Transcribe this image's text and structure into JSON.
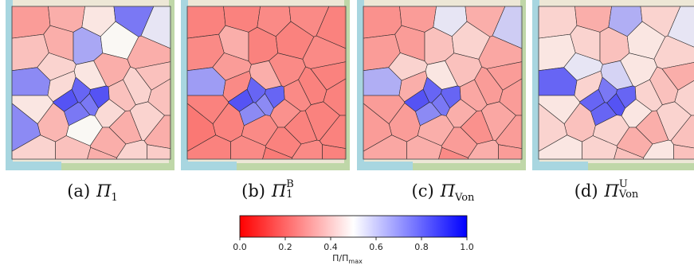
{
  "panels": [
    {
      "label": "(a)",
      "symbol": "Π",
      "sub": "1",
      "sup": "",
      "values": [
        0.25,
        0.3,
        0.45,
        0.85,
        0.55,
        0.35,
        0.3,
        0.72,
        0.5,
        0.3,
        0.8,
        0.95,
        0.9,
        0.85,
        0.95,
        0.85,
        0.4,
        0.45,
        0.3,
        0.4,
        0.35,
        0.42,
        0.4,
        0.3,
        0.5,
        0.32,
        0.8,
        0.4,
        0.35,
        0.3,
        0.4,
        0.38,
        0.42,
        0.3,
        0.3,
        0.45,
        0.35,
        0.35
      ]
    },
    {
      "label": "(b)",
      "symbol": "Π",
      "sub": "1",
      "sup": "B",
      "values": [
        0.18,
        0.18,
        0.2,
        0.2,
        0.18,
        0.2,
        0.3,
        0.18,
        0.18,
        0.2,
        0.75,
        0.95,
        0.9,
        0.8,
        0.9,
        0.8,
        0.25,
        0.3,
        0.2,
        0.18,
        0.18,
        0.22,
        0.18,
        0.18,
        0.2,
        0.18,
        0.15,
        0.18,
        0.2,
        0.18,
        0.2,
        0.18,
        0.2,
        0.18,
        0.16,
        0.18,
        0.2,
        0.18
      ]
    },
    {
      "label": "(c)",
      "symbol": "Π",
      "sub": "Von",
      "sup": "",
      "values": [
        0.22,
        0.25,
        0.55,
        0.3,
        0.62,
        0.25,
        0.25,
        0.35,
        0.4,
        0.28,
        0.7,
        0.95,
        0.9,
        0.85,
        0.9,
        0.8,
        0.4,
        0.45,
        0.35,
        0.25,
        0.25,
        0.3,
        0.28,
        0.25,
        0.3,
        0.25,
        0.25,
        0.28,
        0.3,
        0.25,
        0.3,
        0.25,
        0.3,
        0.22,
        0.2,
        0.25,
        0.28,
        0.25
      ]
    },
    {
      "label": "(d)",
      "symbol": "Π",
      "sub": "Von",
      "sup": "U",
      "values": [
        0.4,
        0.3,
        0.7,
        0.4,
        0.55,
        0.45,
        0.4,
        0.35,
        0.45,
        0.4,
        0.9,
        0.9,
        0.85,
        0.95,
        0.9,
        0.9,
        0.55,
        0.6,
        0.45,
        0.35,
        0.4,
        0.45,
        0.4,
        0.35,
        0.4,
        0.35,
        0.4,
        0.45,
        0.4,
        0.3,
        0.45,
        0.35,
        0.4,
        0.3,
        0.35,
        0.45,
        0.4,
        0.3
      ]
    }
  ],
  "colorbar": {
    "ticks": [
      "0.0",
      "0.2",
      "0.4",
      "0.6",
      "0.8",
      "1.0"
    ],
    "title_main": "Π/Π",
    "title_sub": "max",
    "colors": [
      "#ff0000",
      "#ffffff",
      "#0000ff"
    ]
  },
  "colors": {
    "sea": "#a8d6e0",
    "land": "#ede7d6",
    "park": "#bfd7a8",
    "low": "#ff0000",
    "mid": "#ffffff",
    "high": "#0000ff"
  }
}
